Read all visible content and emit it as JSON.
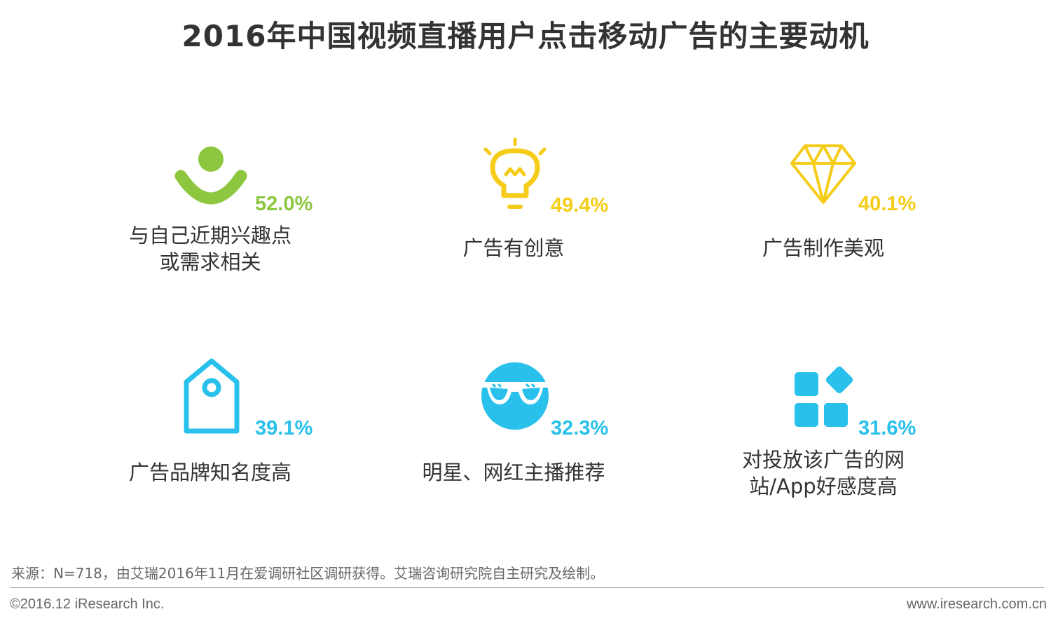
{
  "title": "2016年中国视频直播用户点击移动广告的主要动机",
  "chart_data": {
    "type": "icon-grid",
    "categories": [
      "与自己近期兴趣点或需求相关",
      "广告有创意",
      "广告制作美观",
      "广告品牌知名度高",
      "明星、网红主播推荐",
      "对投放该广告的网站/App好感度高"
    ],
    "values": [
      52.0,
      49.4,
      40.1,
      39.1,
      32.3,
      31.6
    ],
    "unit": "%"
  },
  "items": [
    {
      "percent": "52.0%",
      "label_line1": "与自己近期兴趣点",
      "label_line2": "或需求相关",
      "icon": "person-smile-icon",
      "color": "#8dc63f"
    },
    {
      "percent": "49.4%",
      "label_line1": "广告有创意",
      "label_line2": "",
      "icon": "lightbulb-icon",
      "color": "#f5cc18"
    },
    {
      "percent": "40.1%",
      "label_line1": "广告制作美观",
      "label_line2": "",
      "icon": "diamond-icon",
      "color": "#f5cc18"
    },
    {
      "percent": "39.1%",
      "label_line1": "广告品牌知名度高",
      "label_line2": "",
      "icon": "tag-icon",
      "color": "#29c1ec"
    },
    {
      "percent": "32.3%",
      "label_line1": "明星、网红主播推荐",
      "label_line2": "",
      "icon": "sunglasses-icon",
      "color": "#29c1ec"
    },
    {
      "percent": "31.6%",
      "label_line1": "对投放该广告的网",
      "label_line2": "站/App好感度高",
      "icon": "apps-grid-icon",
      "color": "#29c1ec"
    }
  ],
  "footer": {
    "source": "来源：N=718，由艾瑞2016年11月在爱调研社区调研获得。艾瑞咨询研究院自主研究及绘制。",
    "copyright": "©2016.12 iResearch Inc.",
    "url": "www.iresearch.com.cn"
  }
}
